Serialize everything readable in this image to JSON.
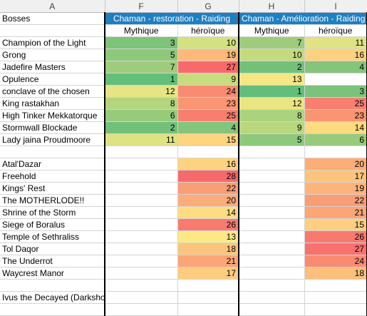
{
  "sheet": {
    "columns": [
      "A",
      "F",
      "G",
      "H",
      "I"
    ],
    "header": {
      "bosses_label": "Bosses",
      "groups": [
        "Chaman - restoration - Raiding",
        "Chaman - Amélioration - Raiding"
      ],
      "subheaders": [
        "Mythique",
        "héroïque",
        "Mythique",
        "héroïque"
      ]
    },
    "rows": [
      {
        "name": "Champion of the Light",
        "cells": [
          {
            "v": "3",
            "c": "#7dc37a"
          },
          {
            "v": "10",
            "c": "#d3e17f"
          },
          {
            "v": "7",
            "c": "#9fcc7c"
          },
          {
            "v": "11",
            "c": "#dfe383"
          }
        ]
      },
      {
        "name": "Grong",
        "cells": [
          {
            "v": "5",
            "c": "#8ec87b"
          },
          {
            "v": "19",
            "c": "#fdb87a"
          },
          {
            "v": "10",
            "c": "#c3da7e"
          },
          {
            "v": "16",
            "c": "#fed180"
          }
        ]
      },
      {
        "name": "Jadefire Masters",
        "cells": [
          {
            "v": "7",
            "c": "#9fcc7c"
          },
          {
            "v": "27",
            "c": "#f8696b"
          },
          {
            "v": "2",
            "c": "#72c07a"
          },
          {
            "v": "4",
            "c": "#85c57b"
          }
        ]
      },
      {
        "name": "Opulence",
        "cells": [
          {
            "v": "1",
            "c": "#63be7b"
          },
          {
            "v": "9",
            "c": "#c7db7f"
          },
          {
            "v": "13",
            "c": "#f4e784"
          },
          {
            "v": "",
            "c": "#ffffff"
          }
        ]
      },
      {
        "name": "conclave of the chosen",
        "cells": [
          {
            "v": "12",
            "c": "#e6e483"
          },
          {
            "v": "24",
            "c": "#f98b72"
          },
          {
            "v": "1",
            "c": "#63be7b"
          },
          {
            "v": "3",
            "c": "#7bc37a"
          }
        ]
      },
      {
        "name": "King rastakhan",
        "cells": [
          {
            "v": "8",
            "c": "#b2d57e"
          },
          {
            "v": "23",
            "c": "#fa9573"
          },
          {
            "v": "12",
            "c": "#eae583"
          },
          {
            "v": "25",
            "c": "#f87f70"
          }
        ]
      },
      {
        "name": "High Tinker Mekkatorque",
        "cells": [
          {
            "v": "6",
            "c": "#98ca7c"
          },
          {
            "v": "25",
            "c": "#f87f70"
          },
          {
            "v": "8",
            "c": "#abd37d"
          },
          {
            "v": "23",
            "c": "#fa9573"
          }
        ]
      },
      {
        "name": "Stormwall Blockade",
        "cells": [
          {
            "v": "2",
            "c": "#72c07a"
          },
          {
            "v": "4",
            "c": "#85c57b"
          },
          {
            "v": "9",
            "c": "#b8d77e"
          },
          {
            "v": "14",
            "c": "#feda81"
          }
        ]
      },
      {
        "name": "Lady jaina Proudmoore",
        "cells": [
          {
            "v": "11",
            "c": "#dde282"
          },
          {
            "v": "15",
            "c": "#fed480"
          },
          {
            "v": "5",
            "c": "#8ec87b"
          },
          {
            "v": "6",
            "c": "#98ca7c"
          }
        ]
      },
      {
        "name": "",
        "cells": [
          {
            "v": "",
            "c": "#ffffff"
          },
          {
            "v": "",
            "c": "#ffffff"
          },
          {
            "v": "",
            "c": "#ffffff"
          },
          {
            "v": "",
            "c": "#ffffff"
          }
        ]
      },
      {
        "name": "Atal'Dazar",
        "cells": [
          {
            "v": "",
            "c": "#ffffff"
          },
          {
            "v": "16",
            "c": "#fed380"
          },
          {
            "v": "",
            "c": "#ffffff"
          },
          {
            "v": "20",
            "c": "#fcad78"
          }
        ]
      },
      {
        "name": "Freehold",
        "cells": [
          {
            "v": "",
            "c": "#ffffff"
          },
          {
            "v": "28",
            "c": "#f8696b"
          },
          {
            "v": "",
            "c": "#ffffff"
          },
          {
            "v": "17",
            "c": "#fdc47d"
          }
        ]
      },
      {
        "name": "Kings' Rest",
        "cells": [
          {
            "v": "",
            "c": "#ffffff"
          },
          {
            "v": "22",
            "c": "#fb9e75"
          },
          {
            "v": "",
            "c": "#ffffff"
          },
          {
            "v": "19",
            "c": "#fdb47a"
          }
        ]
      },
      {
        "name": "The MOTHERLODE!!",
        "cells": [
          {
            "v": "",
            "c": "#ffffff"
          },
          {
            "v": "20",
            "c": "#fcac78"
          },
          {
            "v": "",
            "c": "#ffffff"
          },
          {
            "v": "22",
            "c": "#fb9e75"
          }
        ]
      },
      {
        "name": "Shrine of the Storm",
        "cells": [
          {
            "v": "",
            "c": "#ffffff"
          },
          {
            "v": "14",
            "c": "#fedd82"
          },
          {
            "v": "",
            "c": "#ffffff"
          },
          {
            "v": "21",
            "c": "#fca577"
          }
        ]
      },
      {
        "name": "Siege of Boralus",
        "cells": [
          {
            "v": "",
            "c": "#ffffff"
          },
          {
            "v": "26",
            "c": "#f97a6f"
          },
          {
            "v": "",
            "c": "#ffffff"
          },
          {
            "v": "15",
            "c": "#fecf80"
          }
        ]
      },
      {
        "name": "Temple of Sethraliss",
        "cells": [
          {
            "v": "",
            "c": "#ffffff"
          },
          {
            "v": "13",
            "c": "#fde984"
          },
          {
            "v": "",
            "c": "#ffffff"
          },
          {
            "v": "26",
            "c": "#f8796e"
          }
        ]
      },
      {
        "name": "Tol Daqor",
        "cells": [
          {
            "v": "",
            "c": "#ffffff"
          },
          {
            "v": "18",
            "c": "#fdc47d"
          },
          {
            "v": "",
            "c": "#ffffff"
          },
          {
            "v": "27",
            "c": "#f8716d"
          }
        ]
      },
      {
        "name": "The Underrot",
        "cells": [
          {
            "v": "",
            "c": "#ffffff"
          },
          {
            "v": "21",
            "c": "#fca577"
          },
          {
            "v": "",
            "c": "#ffffff"
          },
          {
            "v": "24",
            "c": "#f98b72"
          }
        ]
      },
      {
        "name": "Waycrest Manor",
        "cells": [
          {
            "v": "",
            "c": "#ffffff"
          },
          {
            "v": "17",
            "c": "#fdcc7f"
          },
          {
            "v": "",
            "c": "#ffffff"
          },
          {
            "v": "18",
            "c": "#fdbf7c"
          }
        ]
      },
      {
        "name": "",
        "cells": [
          {
            "v": "",
            "c": "#ffffff"
          },
          {
            "v": "",
            "c": "#ffffff"
          },
          {
            "v": "",
            "c": "#ffffff"
          },
          {
            "v": "",
            "c": "#ffffff"
          }
        ]
      },
      {
        "name": "Ivus the Decayed (Darkshore)",
        "cells": [
          {
            "v": "",
            "c": "#ffffff"
          },
          {
            "v": "",
            "c": "#ffffff"
          },
          {
            "v": "",
            "c": "#ffffff"
          },
          {
            "v": "",
            "c": "#ffffff"
          }
        ]
      },
      {
        "name": "",
        "cells": [
          {
            "v": "",
            "c": "#ffffff"
          },
          {
            "v": "",
            "c": "#ffffff"
          },
          {
            "v": "",
            "c": "#ffffff"
          },
          {
            "v": "",
            "c": "#ffffff"
          }
        ]
      }
    ]
  }
}
